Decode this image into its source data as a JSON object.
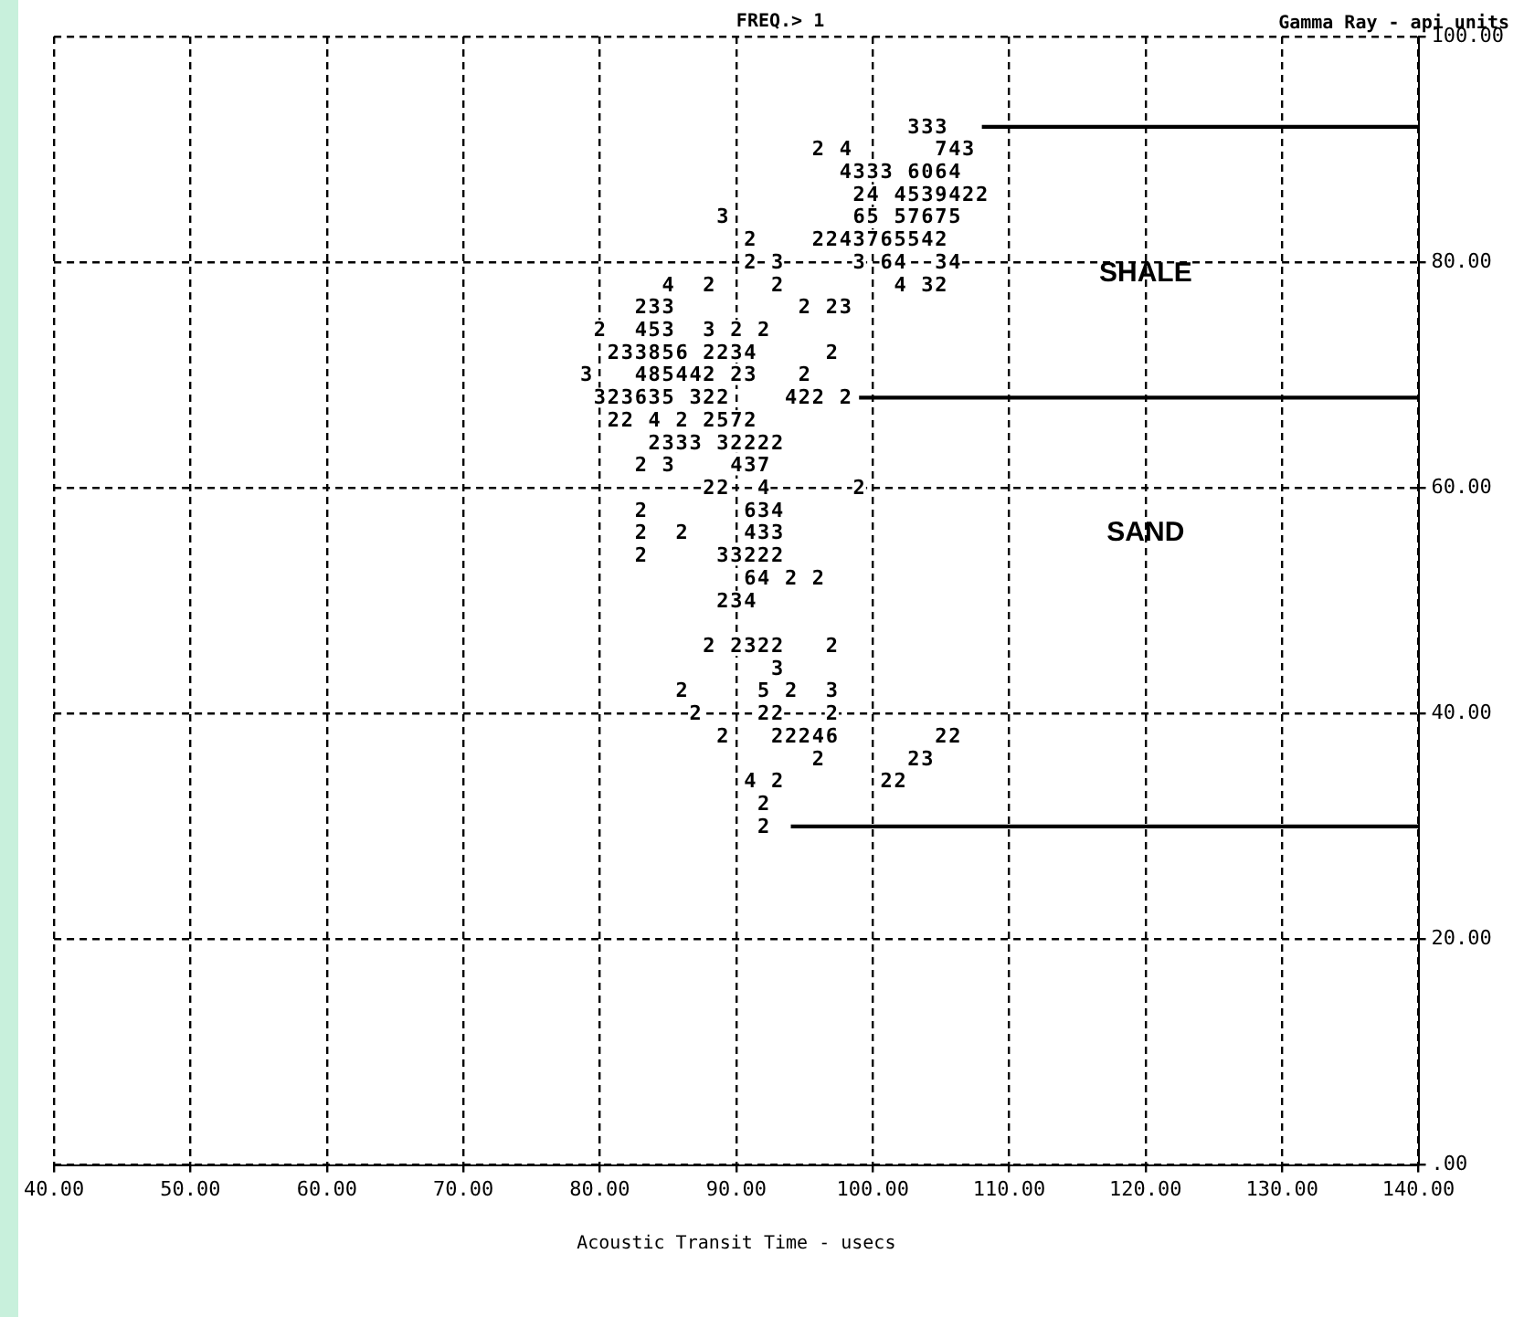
{
  "chart_data": {
    "type": "line",
    "title": "FREQ.> 1",
    "xlabel": "Acoustic Transit Time - usecs",
    "ylabel": "Gamma Ray - api units",
    "annotations": [
      "SHALE",
      "SAND",
      {
        "text": "3",
        "x": 103,
        "y": 92
      },
      {
        "text": "3",
        "x": 104,
        "y": 92
      },
      {
        "text": "3",
        "x": 105,
        "y": 92
      },
      {
        "text": "2",
        "x": 96,
        "y": 90
      },
      {
        "text": "4",
        "x": 98,
        "y": 90
      },
      {
        "text": "7",
        "x": 105,
        "y": 90
      },
      {
        "text": "4",
        "x": 106,
        "y": 90
      },
      {
        "text": "3",
        "x": 107,
        "y": 90
      },
      {
        "text": "4",
        "x": 98,
        "y": 88
      },
      {
        "text": "3",
        "x": 99,
        "y": 88
      },
      {
        "text": "3",
        "x": 100,
        "y": 88
      },
      {
        "text": "3",
        "x": 101,
        "y": 88
      },
      {
        "text": "6",
        "x": 103,
        "y": 88
      },
      {
        "text": "0",
        "x": 104,
        "y": 88
      },
      {
        "text": "6",
        "x": 105,
        "y": 88
      },
      {
        "text": "4",
        "x": 106,
        "y": 88
      },
      {
        "text": "2",
        "x": 99,
        "y": 86
      },
      {
        "text": "4",
        "x": 100,
        "y": 86
      },
      {
        "text": "4",
        "x": 102,
        "y": 86
      },
      {
        "text": "5",
        "x": 103,
        "y": 86
      },
      {
        "text": "3",
        "x": 104,
        "y": 86
      },
      {
        "text": "9",
        "x": 105,
        "y": 86
      },
      {
        "text": "4",
        "x": 106,
        "y": 86
      },
      {
        "text": "2",
        "x": 107,
        "y": 86
      },
      {
        "text": "2",
        "x": 108,
        "y": 86
      },
      {
        "text": "3",
        "x": 89,
        "y": 84
      },
      {
        "text": "6",
        "x": 99,
        "y": 84
      },
      {
        "text": "5",
        "x": 100,
        "y": 84
      },
      {
        "text": "5",
        "x": 102,
        "y": 84
      },
      {
        "text": "7",
        "x": 103,
        "y": 84
      },
      {
        "text": "6",
        "x": 104,
        "y": 84
      },
      {
        "text": "7",
        "x": 105,
        "y": 84
      },
      {
        "text": "5",
        "x": 106,
        "y": 84
      },
      {
        "text": "2",
        "x": 91,
        "y": 82
      },
      {
        "text": "2",
        "x": 96,
        "y": 82
      },
      {
        "text": "2",
        "x": 97,
        "y": 82
      },
      {
        "text": "4",
        "x": 98,
        "y": 82
      },
      {
        "text": "3",
        "x": 99,
        "y": 82
      },
      {
        "text": "7",
        "x": 100,
        "y": 82
      },
      {
        "text": "6",
        "x": 101,
        "y": 82
      },
      {
        "text": "5",
        "x": 102,
        "y": 82
      },
      {
        "text": "5",
        "x": 103,
        "y": 82
      },
      {
        "text": "4",
        "x": 104,
        "y": 82
      },
      {
        "text": "2",
        "x": 105,
        "y": 82
      },
      {
        "text": "2",
        "x": 91,
        "y": 80
      },
      {
        "text": "3",
        "x": 93,
        "y": 80
      },
      {
        "text": "3",
        "x": 99,
        "y": 80
      },
      {
        "text": "6",
        "x": 101,
        "y": 80
      },
      {
        "text": "4",
        "x": 102,
        "y": 80
      },
      {
        "text": "3",
        "x": 105,
        "y": 80
      },
      {
        "text": "4",
        "x": 106,
        "y": 80
      },
      {
        "text": "4",
        "x": 85,
        "y": 78
      },
      {
        "text": "2",
        "x": 88,
        "y": 78
      },
      {
        "text": "2",
        "x": 93,
        "y": 78
      },
      {
        "text": "4",
        "x": 102,
        "y": 78
      },
      {
        "text": "3",
        "x": 104,
        "y": 78
      },
      {
        "text": "2",
        "x": 105,
        "y": 78
      },
      {
        "text": "2",
        "x": 83,
        "y": 76
      },
      {
        "text": "3",
        "x": 84,
        "y": 76
      },
      {
        "text": "3",
        "x": 85,
        "y": 76
      },
      {
        "text": "2",
        "x": 95,
        "y": 76
      },
      {
        "text": "2",
        "x": 97,
        "y": 76
      },
      {
        "text": "3",
        "x": 98,
        "y": 76
      },
      {
        "text": "2",
        "x": 80,
        "y": 74
      },
      {
        "text": "4",
        "x": 83,
        "y": 74
      },
      {
        "text": "5",
        "x": 84,
        "y": 74
      },
      {
        "text": "3",
        "x": 85,
        "y": 74
      },
      {
        "text": "3",
        "x": 88,
        "y": 74
      },
      {
        "text": "2",
        "x": 90,
        "y": 74
      },
      {
        "text": "2",
        "x": 92,
        "y": 74
      },
      {
        "text": "2",
        "x": 81,
        "y": 72
      },
      {
        "text": "3",
        "x": 82,
        "y": 72
      },
      {
        "text": "3",
        "x": 83,
        "y": 72
      },
      {
        "text": "8",
        "x": 84,
        "y": 72
      },
      {
        "text": "5",
        "x": 85,
        "y": 72
      },
      {
        "text": "6",
        "x": 86,
        "y": 72
      },
      {
        "text": "2",
        "x": 88,
        "y": 72
      },
      {
        "text": "2",
        "x": 89,
        "y": 72
      },
      {
        "text": "3",
        "x": 90,
        "y": 72
      },
      {
        "text": "4",
        "x": 91,
        "y": 72
      },
      {
        "text": "2",
        "x": 97,
        "y": 72
      },
      {
        "text": "3",
        "x": 79,
        "y": 70
      },
      {
        "text": "4",
        "x": 83,
        "y": 70
      },
      {
        "text": "8",
        "x": 84,
        "y": 70
      },
      {
        "text": "5",
        "x": 85,
        "y": 70
      },
      {
        "text": "4",
        "x": 86,
        "y": 70
      },
      {
        "text": "4",
        "x": 87,
        "y": 70
      },
      {
        "text": "2",
        "x": 88,
        "y": 70
      },
      {
        "text": "2",
        "x": 90,
        "y": 70
      },
      {
        "text": "3",
        "x": 91,
        "y": 70
      },
      {
        "text": "2",
        "x": 95,
        "y": 70
      },
      {
        "text": "3",
        "x": 80,
        "y": 68
      },
      {
        "text": "2",
        "x": 81,
        "y": 68
      },
      {
        "text": "3",
        "x": 82,
        "y": 68
      },
      {
        "text": "6",
        "x": 83,
        "y": 68
      },
      {
        "text": "3",
        "x": 84,
        "y": 68
      },
      {
        "text": "5",
        "x": 85,
        "y": 68
      },
      {
        "text": "3",
        "x": 87,
        "y": 68
      },
      {
        "text": "2",
        "x": 88,
        "y": 68
      },
      {
        "text": "2",
        "x": 89,
        "y": 68
      },
      {
        "text": "4",
        "x": 94,
        "y": 68
      },
      {
        "text": "2",
        "x": 95,
        "y": 68
      },
      {
        "text": "2",
        "x": 96,
        "y": 68
      },
      {
        "text": "2",
        "x": 98,
        "y": 68
      },
      {
        "text": "2",
        "x": 81,
        "y": 66
      },
      {
        "text": "2",
        "x": 82,
        "y": 66
      },
      {
        "text": "4",
        "x": 84,
        "y": 66
      },
      {
        "text": "2",
        "x": 86,
        "y": 66
      },
      {
        "text": "2",
        "x": 88,
        "y": 66
      },
      {
        "text": "5",
        "x": 89,
        "y": 66
      },
      {
        "text": "7",
        "x": 90,
        "y": 66
      },
      {
        "text": "2",
        "x": 91,
        "y": 66
      },
      {
        "text": "2",
        "x": 84,
        "y": 64
      },
      {
        "text": "3",
        "x": 85,
        "y": 64
      },
      {
        "text": "3",
        "x": 86,
        "y": 64
      },
      {
        "text": "3",
        "x": 87,
        "y": 64
      },
      {
        "text": "3",
        "x": 89,
        "y": 64
      },
      {
        "text": "2",
        "x": 90,
        "y": 64
      },
      {
        "text": "2",
        "x": 91,
        "y": 64
      },
      {
        "text": "2",
        "x": 92,
        "y": 64
      },
      {
        "text": "2",
        "x": 93,
        "y": 64
      },
      {
        "text": "2",
        "x": 83,
        "y": 62
      },
      {
        "text": "3",
        "x": 85,
        "y": 62
      },
      {
        "text": "4",
        "x": 90,
        "y": 62
      },
      {
        "text": "3",
        "x": 91,
        "y": 62
      },
      {
        "text": "7",
        "x": 92,
        "y": 62
      },
      {
        "text": "2",
        "x": 88,
        "y": 60
      },
      {
        "text": "2",
        "x": 89,
        "y": 60
      },
      {
        "text": "4",
        "x": 92,
        "y": 60
      },
      {
        "text": "2",
        "x": 99,
        "y": 60
      },
      {
        "text": "2",
        "x": 83,
        "y": 58
      },
      {
        "text": "6",
        "x": 91,
        "y": 58
      },
      {
        "text": "3",
        "x": 92,
        "y": 58
      },
      {
        "text": "4",
        "x": 93,
        "y": 58
      },
      {
        "text": "2",
        "x": 83,
        "y": 56
      },
      {
        "text": "2",
        "x": 86,
        "y": 56
      },
      {
        "text": "4",
        "x": 91,
        "y": 56
      },
      {
        "text": "3",
        "x": 92,
        "y": 56
      },
      {
        "text": "3",
        "x": 93,
        "y": 56
      },
      {
        "text": "2",
        "x": 83,
        "y": 54
      },
      {
        "text": "3",
        "x": 89,
        "y": 54
      },
      {
        "text": "3",
        "x": 90,
        "y": 54
      },
      {
        "text": "2",
        "x": 91,
        "y": 54
      },
      {
        "text": "2",
        "x": 92,
        "y": 54
      },
      {
        "text": "2",
        "x": 93,
        "y": 54
      },
      {
        "text": "6",
        "x": 91,
        "y": 52
      },
      {
        "text": "4",
        "x": 92,
        "y": 52
      },
      {
        "text": "2",
        "x": 94,
        "y": 52
      },
      {
        "text": "2",
        "x": 96,
        "y": 52
      },
      {
        "text": "2",
        "x": 89,
        "y": 50
      },
      {
        "text": "3",
        "x": 90,
        "y": 50
      },
      {
        "text": "4",
        "x": 91,
        "y": 50
      },
      {
        "text": "2",
        "x": 88,
        "y": 46
      },
      {
        "text": "2",
        "x": 90,
        "y": 46
      },
      {
        "text": "3",
        "x": 91,
        "y": 46
      },
      {
        "text": "2",
        "x": 92,
        "y": 46
      },
      {
        "text": "2",
        "x": 93,
        "y": 46
      },
      {
        "text": "2",
        "x": 97,
        "y": 46
      },
      {
        "text": "3",
        "x": 93,
        "y": 44
      },
      {
        "text": "2",
        "x": 86,
        "y": 42
      },
      {
        "text": "5",
        "x": 92,
        "y": 42
      },
      {
        "text": "2",
        "x": 94,
        "y": 42
      },
      {
        "text": "3",
        "x": 97,
        "y": 42
      },
      {
        "text": "2",
        "x": 87,
        "y": 40
      },
      {
        "text": "2",
        "x": 92,
        "y": 40
      },
      {
        "text": "2",
        "x": 93,
        "y": 40
      },
      {
        "text": "2",
        "x": 97,
        "y": 40
      },
      {
        "text": "2",
        "x": 89,
        "y": 38
      },
      {
        "text": "2",
        "x": 93,
        "y": 38
      },
      {
        "text": "2",
        "x": 94,
        "y": 38
      },
      {
        "text": "2",
        "x": 95,
        "y": 38
      },
      {
        "text": "4",
        "x": 96,
        "y": 38
      },
      {
        "text": "6",
        "x": 97,
        "y": 38
      },
      {
        "text": "2",
        "x": 105,
        "y": 38
      },
      {
        "text": "2",
        "x": 106,
        "y": 38
      },
      {
        "text": "2",
        "x": 96,
        "y": 36
      },
      {
        "text": "2",
        "x": 103,
        "y": 36
      },
      {
        "text": "3",
        "x": 104,
        "y": 36
      },
      {
        "text": "4",
        "x": 91,
        "y": 34
      },
      {
        "text": "2",
        "x": 93,
        "y": 34
      },
      {
        "text": "2",
        "x": 101,
        "y": 34
      },
      {
        "text": "2",
        "x": 102,
        "y": 34
      },
      {
        "text": "2",
        "x": 92,
        "y": 32
      },
      {
        "text": "2",
        "x": 92,
        "y": 30
      }
    ],
    "xlim": [
      40,
      140
    ],
    "xticks": [
      {
        "value": 40,
        "label": "40.00"
      },
      {
        "value": 50,
        "label": "50.00"
      },
      {
        "value": 60,
        "label": "60.00"
      },
      {
        "value": 70,
        "label": "70.00"
      },
      {
        "value": 80,
        "label": "80.00"
      },
      {
        "value": 90,
        "label": "90.00"
      },
      {
        "value": 100,
        "label": "100.00"
      },
      {
        "value": 110,
        "label": "110.00"
      },
      {
        "value": 120,
        "label": "120.00"
      },
      {
        "value": 130,
        "label": "130.00"
      },
      {
        "value": 140,
        "label": "140.00"
      }
    ],
    "ylim": [
      0,
      100
    ],
    "yticks": [
      {
        "value": 0,
        "label": ".00"
      },
      {
        "value": 20,
        "label": "20.00"
      },
      {
        "value": 40,
        "label": "40.00"
      },
      {
        "value": 60,
        "label": "60.00"
      },
      {
        "value": 80,
        "label": "80.00"
      },
      {
        "value": 100,
        "label": "100.00"
      }
    ],
    "grid": true,
    "legend": false,
    "series": [
      {
        "color": "#000000",
        "x": [
          108,
          140
        ],
        "values": [
          92,
          92
        ]
      },
      {
        "color": "#000000",
        "x": [
          99,
          140
        ],
        "values": [
          68,
          68
        ]
      },
      {
        "color": "#000000",
        "x": [
          94,
          140
        ],
        "values": [
          30,
          30
        ]
      }
    ]
  }
}
